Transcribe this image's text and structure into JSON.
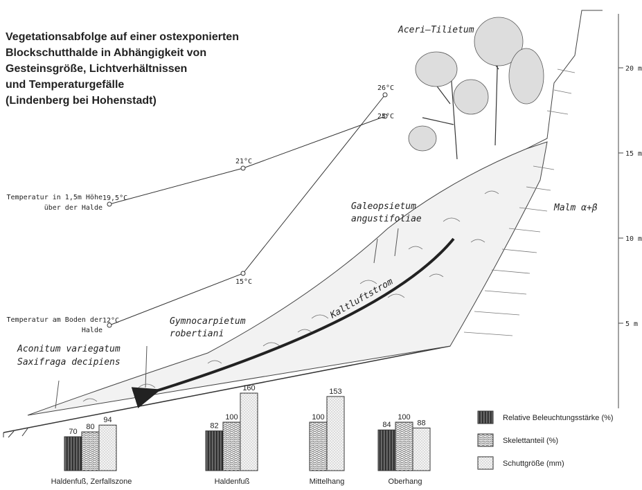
{
  "title_lines": [
    "Vegetationsabfolge auf einer ostexponierten",
    "Blockschutthalde in Abhängigkeit von",
    "Gesteinsgröße, Lichtverhältnissen",
    "und Temperaturgefälle",
    "(Lindenberg bei Hohenstadt)"
  ],
  "plant_labels": {
    "aceri": "Aceri–Tilietum",
    "galeopsietum": [
      "Galeopsietum",
      "angustifoliae"
    ],
    "gymnocarpietum": [
      "Gymnocarpietum",
      "robertiani"
    ],
    "aconitum": [
      "Aconitum variegatum",
      "Saxifraga decipiens"
    ]
  },
  "rock_label": "Malm α+β",
  "airflow_label": "Kaltluftstrom",
  "temperature": [
    {
      "label_lines": [
        "Temperatur in 1,5m Höhe",
        "über der Halde"
      ],
      "points": [
        {
          "value": 19.5,
          "label": "19,5°C"
        },
        {
          "value": 21,
          "label": "21°C"
        },
        {
          "value": 25,
          "label": "25°C"
        }
      ]
    },
    {
      "label_lines": [
        "Temperatur am Boden der",
        "Halde"
      ],
      "points": [
        {
          "value": 12,
          "label": "12°C"
        },
        {
          "value": 15,
          "label": "15°C"
        },
        {
          "value": 26,
          "label": "26°C"
        }
      ]
    }
  ],
  "height_scale": [
    {
      "value": 5,
      "label": "5 m"
    },
    {
      "value": 10,
      "label": "10 m"
    },
    {
      "value": 15,
      "label": "15 m"
    },
    {
      "value": 20,
      "label": "20 m"
    }
  ],
  "bars": {
    "series": [
      "Relative Beleuchtungsstärke (%)",
      "Skelettanteil (%)",
      "Schuttgröße (mm)"
    ],
    "groups": [
      {
        "label": "Haldenfuß, Zerfallszone",
        "values": [
          70,
          80,
          94
        ]
      },
      {
        "label": "Haldenfuß",
        "values": [
          82,
          100,
          160
        ]
      },
      {
        "label": "Mittelhang",
        "values": [
          null,
          100,
          153
        ]
      },
      {
        "label": "Oberhang",
        "values": [
          84,
          100,
          88
        ]
      }
    ]
  }
}
